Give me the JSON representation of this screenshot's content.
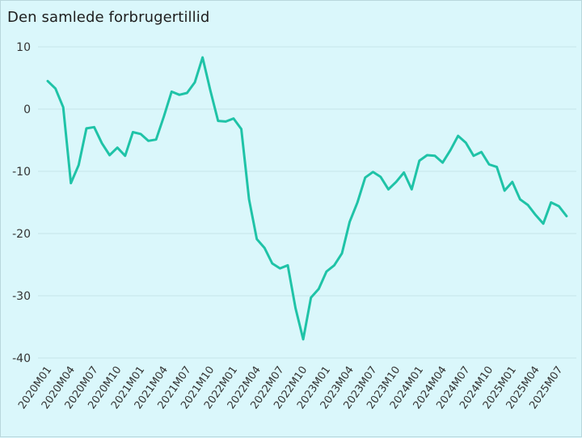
{
  "chart_data": {
    "type": "line",
    "title": "Den samlede forbrugertillid",
    "xlabel": "",
    "ylabel": "",
    "ylim": [
      -40,
      10
    ],
    "yticks": [
      10,
      0,
      -10,
      -20,
      -30,
      -40
    ],
    "grid": true,
    "line_color": "#1fc3a7",
    "x": [
      "2020M01",
      "2020M02",
      "2020M03",
      "2020M04",
      "2020M05",
      "2020M06",
      "2020M07",
      "2020M08",
      "2020M09",
      "2020M10",
      "2020M11",
      "2020M12",
      "2021M01",
      "2021M02",
      "2021M03",
      "2021M04",
      "2021M05",
      "2021M06",
      "2021M07",
      "2021M08",
      "2021M09",
      "2021M10",
      "2021M11",
      "2021M12",
      "2022M01",
      "2022M02",
      "2022M03",
      "2022M04",
      "2022M05",
      "2022M06",
      "2022M07",
      "2022M08",
      "2022M09",
      "2022M10",
      "2022M11",
      "2022M12",
      "2023M01",
      "2023M02",
      "2023M03",
      "2023M04",
      "2023M05",
      "2023M06",
      "2023M07",
      "2023M08",
      "2023M09",
      "2023M10",
      "2023M11",
      "2023M12",
      "2024M01",
      "2024M02",
      "2024M03",
      "2024M04",
      "2024M05",
      "2024M06",
      "2024M07",
      "2024M08",
      "2024M09",
      "2024M10",
      "2024M11",
      "2024M12",
      "2025M01",
      "2025M02",
      "2025M03",
      "2025M04",
      "2025M05",
      "2025M06",
      "2025M07",
      "2025M08"
    ],
    "xtick_labels": [
      "2020M01",
      "2020M04",
      "2020M07",
      "2020M10",
      "2021M01",
      "2021M04",
      "2021M07",
      "2021M10",
      "2022M01",
      "2022M04",
      "2022M07",
      "2022M10",
      "2023M01",
      "2023M04",
      "2023M07",
      "2023M10",
      "2024M01",
      "2024M04",
      "2024M07",
      "2024M10",
      "2025M01",
      "2025M04",
      "2025M07"
    ],
    "values": [
      4.5,
      3.3,
      0.3,
      -11.9,
      -9.0,
      -3.1,
      -2.9,
      -5.5,
      -7.4,
      -6.2,
      -7.5,
      -3.7,
      -4.0,
      -5.1,
      -4.9,
      -1.2,
      2.8,
      2.3,
      2.6,
      4.3,
      8.3,
      3.0,
      -1.9,
      -2.0,
      -1.5,
      -3.2,
      -14.5,
      -20.9,
      -22.3,
      -24.8,
      -25.6,
      -25.1,
      -32.0,
      -37.0,
      -30.3,
      -28.9,
      -26.1,
      -25.1,
      -23.2,
      -18.1,
      -15.0,
      -11.0,
      -10.1,
      -10.9,
      -12.9,
      -11.7,
      -10.2,
      -12.9,
      -8.3,
      -7.4,
      -7.5,
      -8.6,
      -6.6,
      -4.3,
      -5.4,
      -7.5,
      -6.9,
      -8.9,
      -9.3,
      -13.1,
      -11.7,
      -14.5,
      -15.4,
      -17.0,
      -18.4,
      -15.0,
      -15.6,
      -17.2
    ]
  }
}
